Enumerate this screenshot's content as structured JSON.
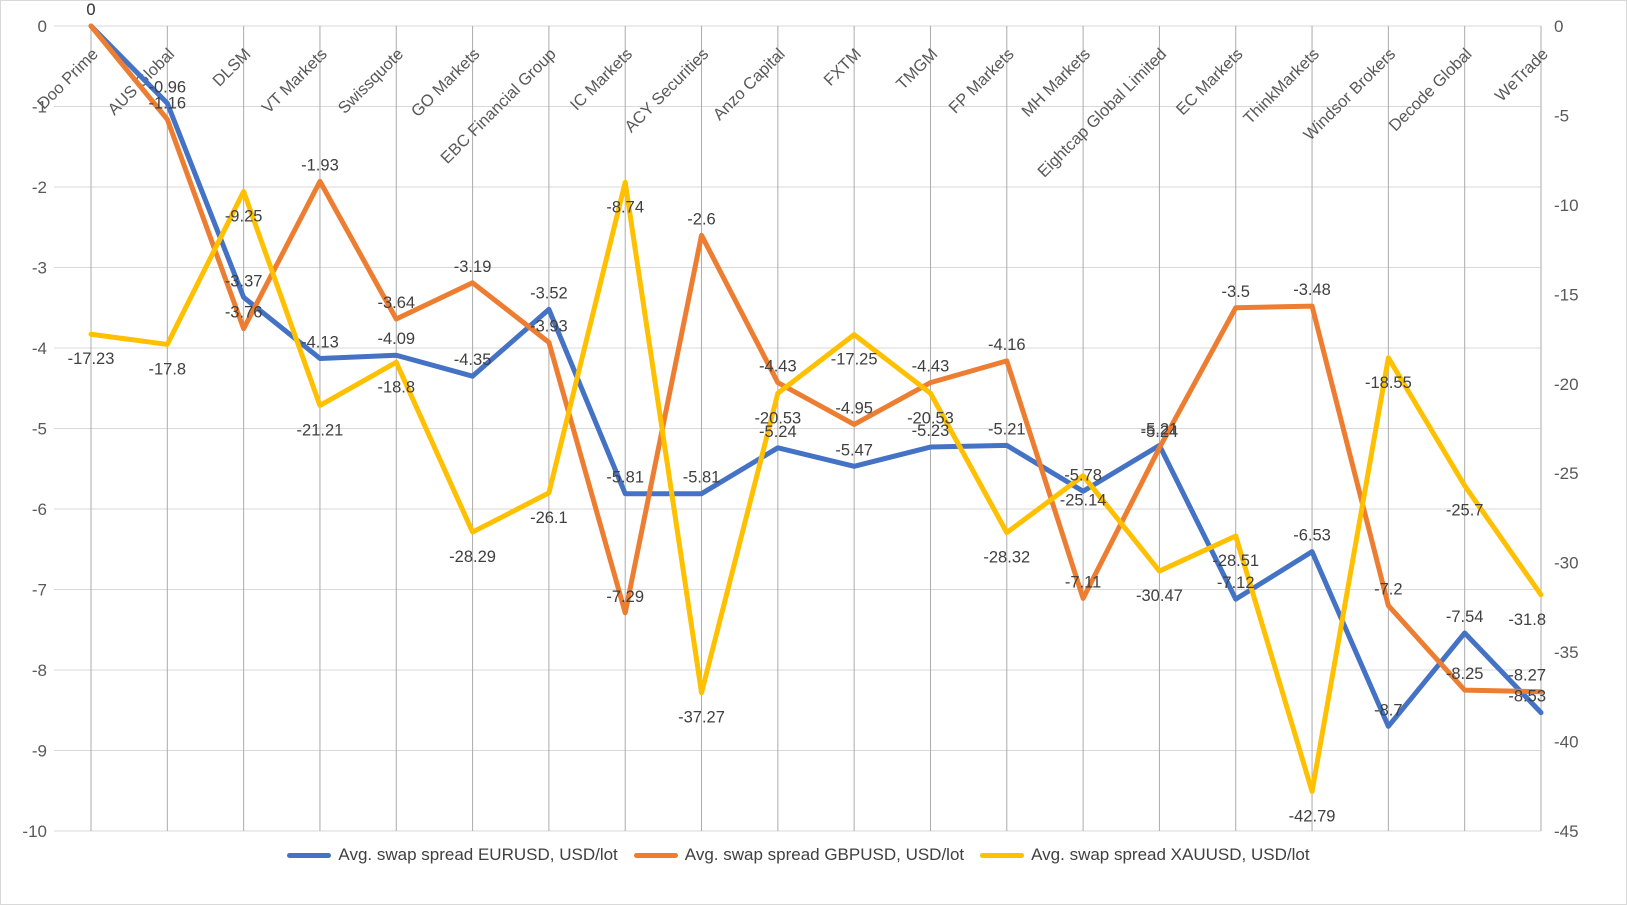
{
  "chart_data": {
    "type": "line",
    "title": "",
    "categories": [
      "Doo Prime",
      "AUS Global",
      "DLSM",
      "VT Markets",
      "Swissquote",
      "GO Markets",
      "EBC Financial Group",
      "IC Markets",
      "ACY Securities",
      "Anzo Capital",
      "FXTM",
      "TMGM",
      "FP Markets",
      "MH Markets",
      "Eightcap Global Limited",
      "EC Markets",
      "ThinkMarkets",
      "Windsor Brokers",
      "Decode Global",
      "WeTrade"
    ],
    "series": [
      {
        "name": "Avg. swap spread EURUSD, USD/lot",
        "color": "#4472C4",
        "axis": "left",
        "values": [
          0,
          -0.96,
          -3.37,
          -4.13,
          -4.09,
          -4.35,
          -3.52,
          -5.81,
          -5.81,
          -5.24,
          -5.47,
          -5.23,
          -5.21,
          -5.78,
          -5.21,
          -7.12,
          -6.53,
          -8.7,
          -7.54,
          -8.53
        ]
      },
      {
        "name": "Avg. swap spread GBPUSD, USD/lot",
        "color": "#ED7D31",
        "axis": "left",
        "values": [
          0,
          -1.16,
          -3.76,
          -1.93,
          -3.64,
          -3.19,
          -3.93,
          -7.29,
          -2.6,
          -4.43,
          -4.95,
          -4.43,
          -4.16,
          -7.11,
          -5.24,
          -3.5,
          -3.48,
          -7.2,
          -8.25,
          -8.27
        ]
      },
      {
        "name": "Avg. swap spread XAUUSD, USD/lot",
        "color": "#FFC000",
        "axis": "right",
        "values": [
          -17.23,
          -17.8,
          -9.25,
          -21.21,
          -18.8,
          -28.29,
          -26.1,
          -8.74,
          -37.27,
          -20.53,
          -17.25,
          -20.53,
          -28.32,
          -25.14,
          -30.47,
          -28.51,
          -42.79,
          -18.55,
          -25.7,
          -31.8
        ]
      }
    ],
    "axes": {
      "left": {
        "max": 0,
        "min": -10,
        "ticks": [
          0,
          -1,
          -2,
          -3,
          -4,
          -5,
          -6,
          -7,
          -8,
          -9,
          -10
        ]
      },
      "right": {
        "max": 0,
        "min": -45,
        "ticks": [
          0,
          -5,
          -10,
          -15,
          -20,
          -25,
          -30,
          -35,
          -40,
          -45
        ]
      }
    },
    "legend_position": "bottom",
    "grid": true,
    "data_labels": true,
    "style": {
      "grid_color": "#D9D9D9",
      "category_line_color": "#ABABAB",
      "axis_text_color": "#595959",
      "data_label_color": "#404040"
    }
  }
}
